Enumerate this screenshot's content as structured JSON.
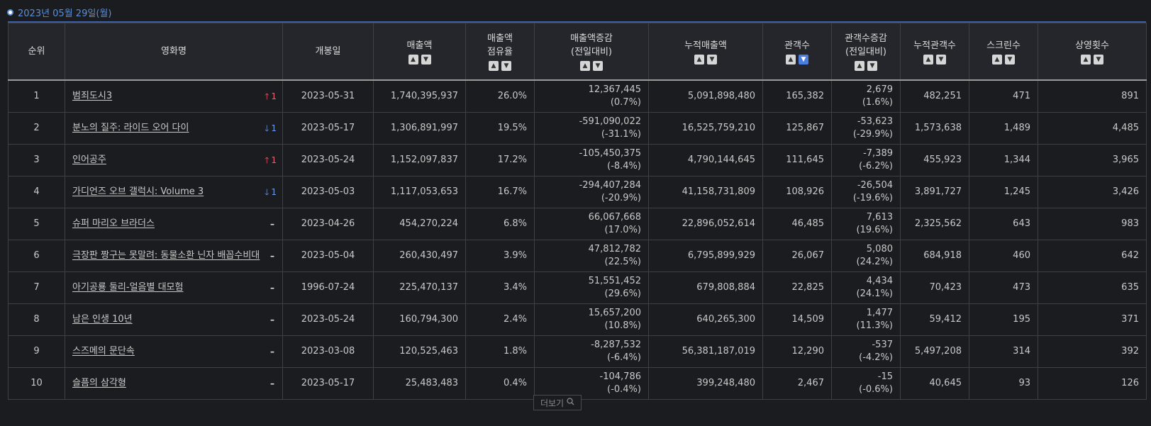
{
  "date_label": "2023년 05월 29일(월)",
  "headers": {
    "rank": "순위",
    "title": "영화명",
    "open_date": "개봉일",
    "sales": "매출액",
    "share_line1": "매출액",
    "share_line2": "점유율",
    "sales_change_line1": "매출액증감",
    "sales_change_line2": "(전일대비)",
    "total_sales": "누적매출액",
    "audience": "관객수",
    "audience_change_line1": "관객수증감",
    "audience_change_line2": "(전일대비)",
    "total_audience": "누적관객수",
    "screens": "스크린수",
    "shows": "상영횟수"
  },
  "sort_icons": {
    "up": "sort-up-icon",
    "down": "sort-down-icon",
    "active_column": "audience",
    "active_direction": "down"
  },
  "rows": [
    {
      "rank": "1",
      "title": "범죄도시3",
      "change_dir": "up",
      "change": "1",
      "open_date": "2023-05-31",
      "sales": "1,740,395,937",
      "share": "26.0%",
      "sales_change": "12,367,445",
      "sales_change_pct": "(0.7%)",
      "total_sales": "5,091,898,480",
      "audience": "165,382",
      "aud_change": "2,679",
      "aud_change_pct": "(1.6%)",
      "total_audience": "482,251",
      "screens": "471",
      "shows": "891"
    },
    {
      "rank": "2",
      "title": "분노의 질주: 라이드 오어 다이",
      "change_dir": "down",
      "change": "1",
      "open_date": "2023-05-17",
      "sales": "1,306,891,997",
      "share": "19.5%",
      "sales_change": "-591,090,022",
      "sales_change_pct": "(-31.1%)",
      "total_sales": "16,525,759,210",
      "audience": "125,867",
      "aud_change": "-53,623",
      "aud_change_pct": "(-29.9%)",
      "total_audience": "1,573,638",
      "screens": "1,489",
      "shows": "4,485"
    },
    {
      "rank": "3",
      "title": "인어공주",
      "change_dir": "up",
      "change": "1",
      "open_date": "2023-05-24",
      "sales": "1,152,097,837",
      "share": "17.2%",
      "sales_change": "-105,450,375",
      "sales_change_pct": "(-8.4%)",
      "total_sales": "4,790,144,645",
      "audience": "111,645",
      "aud_change": "-7,389",
      "aud_change_pct": "(-6.2%)",
      "total_audience": "455,923",
      "screens": "1,344",
      "shows": "3,965"
    },
    {
      "rank": "4",
      "title": "가디언즈 오브 갤럭시: Volume 3",
      "change_dir": "down",
      "change": "1",
      "open_date": "2023-05-03",
      "sales": "1,117,053,653",
      "share": "16.7%",
      "sales_change": "-294,407,284",
      "sales_change_pct": "(-20.9%)",
      "total_sales": "41,158,731,809",
      "audience": "108,926",
      "aud_change": "-26,504",
      "aud_change_pct": "(-19.6%)",
      "total_audience": "3,891,727",
      "screens": "1,245",
      "shows": "3,426"
    },
    {
      "rank": "5",
      "title": "슈퍼 마리오 브라더스",
      "change_dir": "flat",
      "change": "",
      "open_date": "2023-04-26",
      "sales": "454,270,224",
      "share": "6.8%",
      "sales_change": "66,067,668",
      "sales_change_pct": "(17.0%)",
      "total_sales": "22,896,052,614",
      "audience": "46,485",
      "aud_change": "7,613",
      "aud_change_pct": "(19.6%)",
      "total_audience": "2,325,562",
      "screens": "643",
      "shows": "983"
    },
    {
      "rank": "6",
      "title": "극장판 짱구는 못말려: 동물소환 닌자 배꼽수비대",
      "change_dir": "flat",
      "change": "",
      "open_date": "2023-05-04",
      "sales": "260,430,497",
      "share": "3.9%",
      "sales_change": "47,812,782",
      "sales_change_pct": "(22.5%)",
      "total_sales": "6,795,899,929",
      "audience": "26,067",
      "aud_change": "5,080",
      "aud_change_pct": "(24.2%)",
      "total_audience": "684,918",
      "screens": "460",
      "shows": "642"
    },
    {
      "rank": "7",
      "title": "아기공룡 둘리-얼음별 대모험",
      "change_dir": "flat",
      "change": "",
      "open_date": "1996-07-24",
      "sales": "225,470,137",
      "share": "3.4%",
      "sales_change": "51,551,452",
      "sales_change_pct": "(29.6%)",
      "total_sales": "679,808,884",
      "audience": "22,825",
      "aud_change": "4,434",
      "aud_change_pct": "(24.1%)",
      "total_audience": "70,423",
      "screens": "473",
      "shows": "635"
    },
    {
      "rank": "8",
      "title": "남은 인생 10년",
      "change_dir": "flat",
      "change": "",
      "open_date": "2023-05-24",
      "sales": "160,794,300",
      "share": "2.4%",
      "sales_change": "15,657,200",
      "sales_change_pct": "(10.8%)",
      "total_sales": "640,265,300",
      "audience": "14,509",
      "aud_change": "1,477",
      "aud_change_pct": "(11.3%)",
      "total_audience": "59,412",
      "screens": "195",
      "shows": "371"
    },
    {
      "rank": "9",
      "title": "스즈메의 문단속",
      "change_dir": "flat",
      "change": "",
      "open_date": "2023-03-08",
      "sales": "120,525,463",
      "share": "1.8%",
      "sales_change": "-8,287,532",
      "sales_change_pct": "(-6.4%)",
      "total_sales": "56,381,187,019",
      "audience": "12,290",
      "aud_change": "-537",
      "aud_change_pct": "(-4.2%)",
      "total_audience": "5,497,208",
      "screens": "314",
      "shows": "392"
    },
    {
      "rank": "10",
      "title": "슬픔의 삼각형",
      "change_dir": "flat",
      "change": "",
      "open_date": "2023-05-17",
      "sales": "25,483,483",
      "share": "0.4%",
      "sales_change": "-104,786",
      "sales_change_pct": "(-0.4%)",
      "total_sales": "399,248,480",
      "audience": "2,467",
      "aud_change": "-15",
      "aud_change_pct": "(-0.6%)",
      "total_audience": "40,645",
      "screens": "93",
      "shows": "126"
    }
  ],
  "more_button": {
    "label": "더보기",
    "icon": "search-icon"
  }
}
